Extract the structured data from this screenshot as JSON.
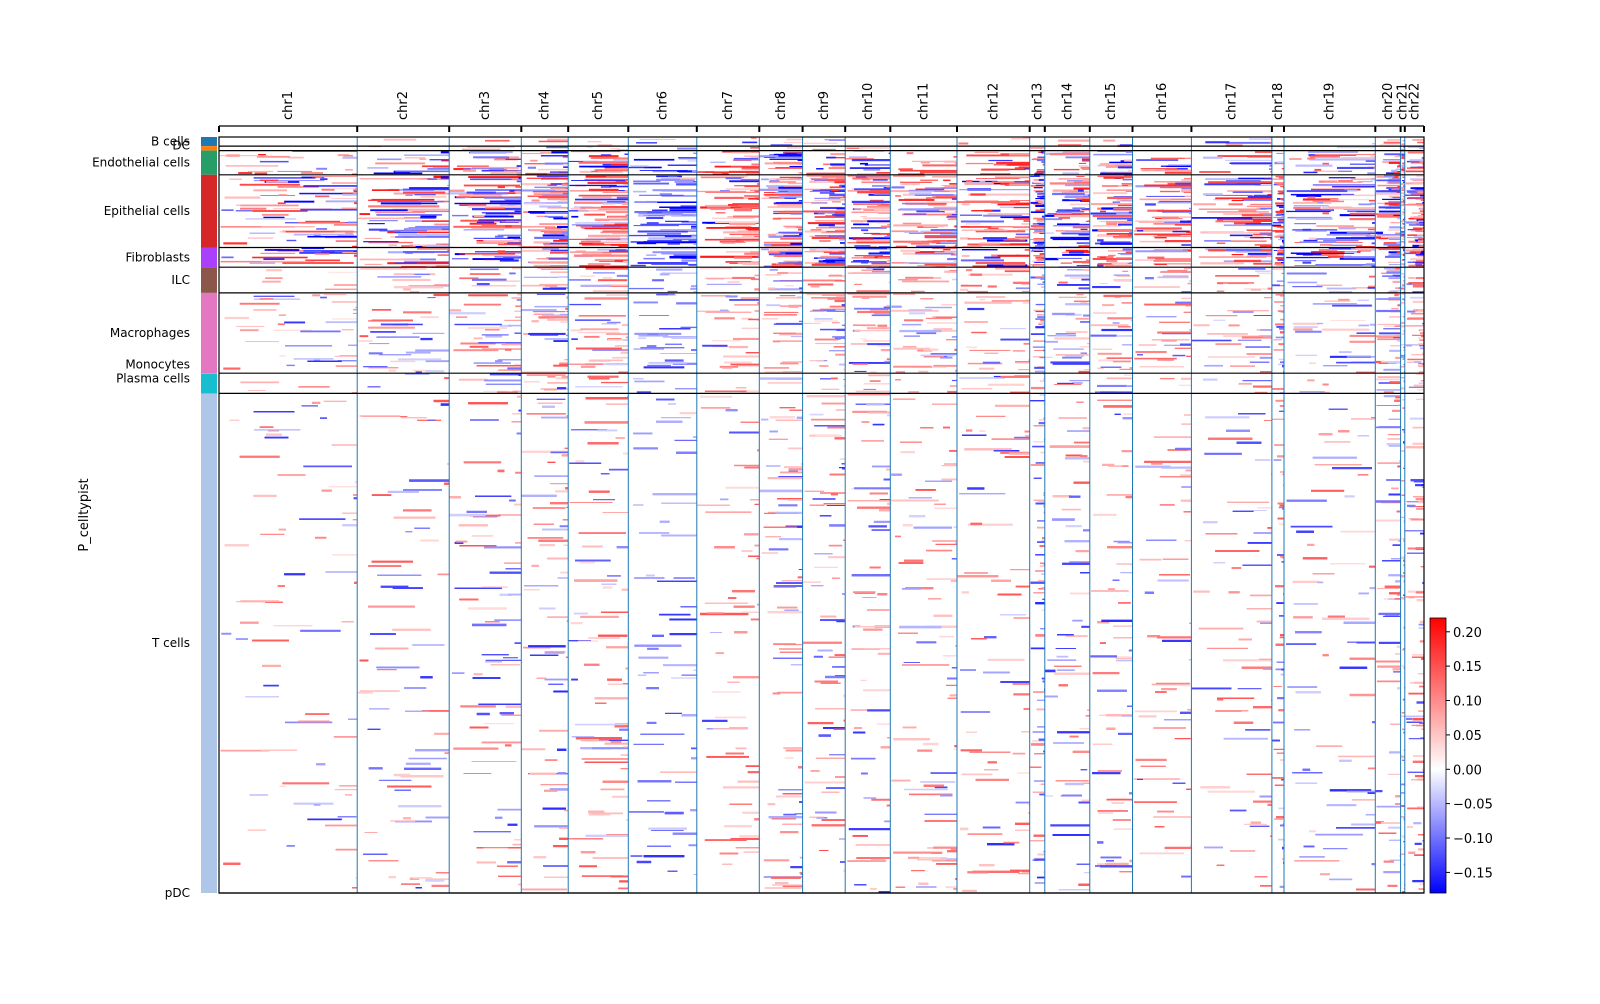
{
  "chart_data": {
    "type": "heatmap",
    "title": "",
    "xlabel": "",
    "ylabel": "P_celltypist",
    "chromosomes": [
      {
        "name": "chr1",
        "start": 0,
        "end": 1150
      },
      {
        "name": "chr2",
        "start": 1150,
        "end": 1915
      },
      {
        "name": "chr3",
        "start": 1915,
        "end": 2515
      },
      {
        "name": "chr4",
        "start": 2515,
        "end": 2905
      },
      {
        "name": "chr5",
        "start": 2905,
        "end": 3405
      },
      {
        "name": "chr6",
        "start": 3405,
        "end": 3975
      },
      {
        "name": "chr7",
        "start": 3975,
        "end": 4495
      },
      {
        "name": "chr8",
        "start": 4495,
        "end": 4855
      },
      {
        "name": "chr9",
        "start": 4855,
        "end": 5210
      },
      {
        "name": "chr10",
        "start": 5210,
        "end": 5585
      },
      {
        "name": "chr11",
        "start": 5585,
        "end": 6140
      },
      {
        "name": "chr12",
        "start": 6140,
        "end": 6745
      },
      {
        "name": "chr13",
        "start": 6745,
        "end": 6870
      },
      {
        "name": "chr14",
        "start": 6870,
        "end": 7245
      },
      {
        "name": "chr15",
        "start": 7245,
        "end": 7600
      },
      {
        "name": "chr16",
        "start": 7600,
        "end": 8090
      },
      {
        "name": "chr17",
        "start": 8090,
        "end": 8760
      },
      {
        "name": "chr18",
        "start": 8760,
        "end": 8860
      },
      {
        "name": "chr19",
        "start": 8860,
        "end": 9620
      },
      {
        "name": "chr20",
        "start": 9620,
        "end": 9830
      },
      {
        "name": "chr21",
        "start": 9830,
        "end": 9865
      },
      {
        "name": "chr22",
        "start": 9865,
        "end": 10025
      }
    ],
    "gene_count": 10025,
    "cell_groups": [
      {
        "name": "B cells",
        "size": 30,
        "color": "#1f77b4",
        "shown": true
      },
      {
        "name": "DC",
        "size": 15,
        "color": "#ff7f0e",
        "shown": true
      },
      {
        "name": "Endothelial cells",
        "size": 80,
        "color": "#279e68",
        "shown": true
      },
      {
        "name": "Epithelial cells",
        "size": 240,
        "color": "#d62728",
        "shown": true
      },
      {
        "name": "Fibroblasts",
        "size": 65,
        "color": "#aa40fc",
        "shown": true
      },
      {
        "name": "ILC",
        "size": 85,
        "color": "#8c564b",
        "shown": true
      },
      {
        "name": "Macrophages",
        "size": 265,
        "color": "#e377c2",
        "shown": true
      },
      {
        "name": "Monocytes",
        "size": 2,
        "color": "#b5bd61",
        "shown": true
      },
      {
        "name": "Plasma cells",
        "size": 65,
        "color": "#17becf",
        "shown": true
      },
      {
        "name": "T cells",
        "size": 1650,
        "color": "#aec7e8",
        "shown": true
      },
      {
        "name": "pDC",
        "size": 0,
        "color": "#ffbb78",
        "shown": false
      }
    ],
    "colorbar": {
      "min": -0.18,
      "max": 0.22,
      "ticks": [
        0.2,
        0.15,
        0.1,
        0.05,
        0.0,
        -0.05,
        -0.1,
        -0.15
      ],
      "tick_labels": [
        "0.20",
        "0.15",
        "0.10",
        "0.05",
        "0.00",
        "−0.05",
        "−0.10",
        "−0.15"
      ],
      "low_color": "#0000ff",
      "mid_color": "#ffffff",
      "high_color": "#ff0000"
    },
    "grid": false,
    "separator_color": "#1f77b4"
  }
}
